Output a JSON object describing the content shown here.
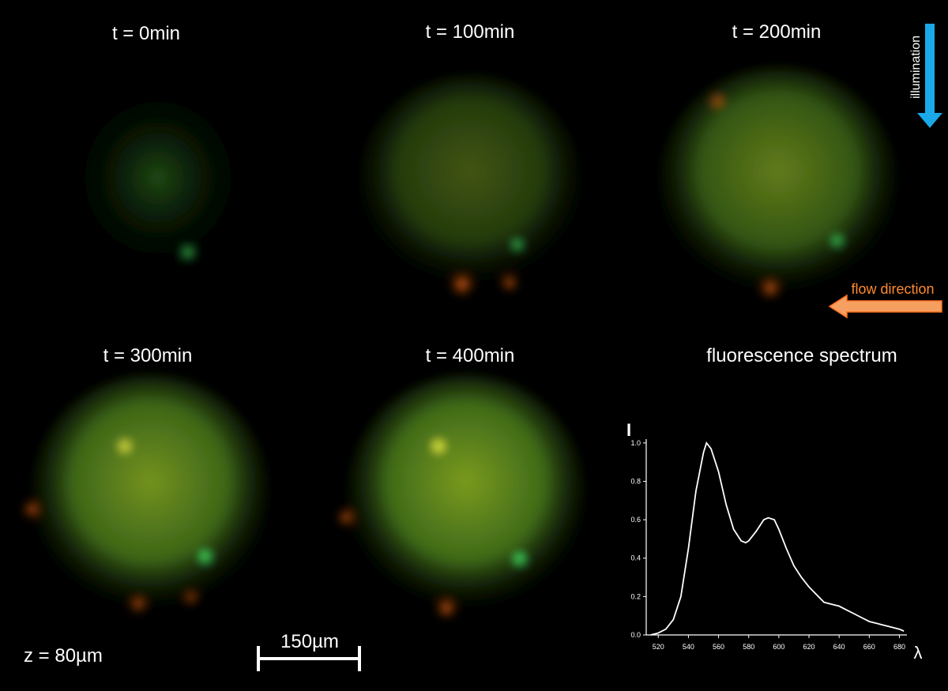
{
  "panels": [
    {
      "label": "t = 0min"
    },
    {
      "label": "t = 100min"
    },
    {
      "label": "t = 200min"
    },
    {
      "label": "t = 300min"
    },
    {
      "label": "t = 400min"
    }
  ],
  "annotations": {
    "illumination": "illumination",
    "flow_direction": "flow direction",
    "depth": "z = 80µm",
    "scale_bar": "150µm"
  },
  "chart_data": {
    "type": "line",
    "title": "fluorescence spectrum",
    "x_label": "λ",
    "y_label": "I",
    "x": [
      515,
      520,
      525,
      530,
      535,
      540,
      545,
      550,
      552,
      555,
      560,
      565,
      570,
      575,
      578,
      580,
      585,
      590,
      593,
      597,
      600,
      605,
      610,
      615,
      620,
      625,
      630,
      635,
      640,
      645,
      650,
      655,
      660,
      665,
      670,
      675,
      680,
      683
    ],
    "series": [
      {
        "name": "spectrum",
        "color": "#ffffff",
        "values": [
          0.0,
          0.01,
          0.03,
          0.08,
          0.2,
          0.45,
          0.75,
          0.95,
          1.0,
          0.97,
          0.85,
          0.68,
          0.55,
          0.49,
          0.48,
          0.49,
          0.54,
          0.6,
          0.61,
          0.6,
          0.55,
          0.45,
          0.36,
          0.3,
          0.25,
          0.21,
          0.17,
          0.16,
          0.15,
          0.13,
          0.11,
          0.09,
          0.07,
          0.06,
          0.05,
          0.04,
          0.03,
          0.02
        ]
      }
    ],
    "xlim": [
      512,
      685
    ],
    "ylim": [
      0,
      1.02
    ],
    "xticks": [
      520,
      540,
      560,
      580,
      600,
      620,
      640,
      660,
      680
    ],
    "yticks": [
      {
        "value": 0,
        "label": "0.0"
      },
      0.2,
      0.4,
      0.6,
      0.8,
      {
        "value": 1,
        "label": "1.0"
      }
    ]
  }
}
